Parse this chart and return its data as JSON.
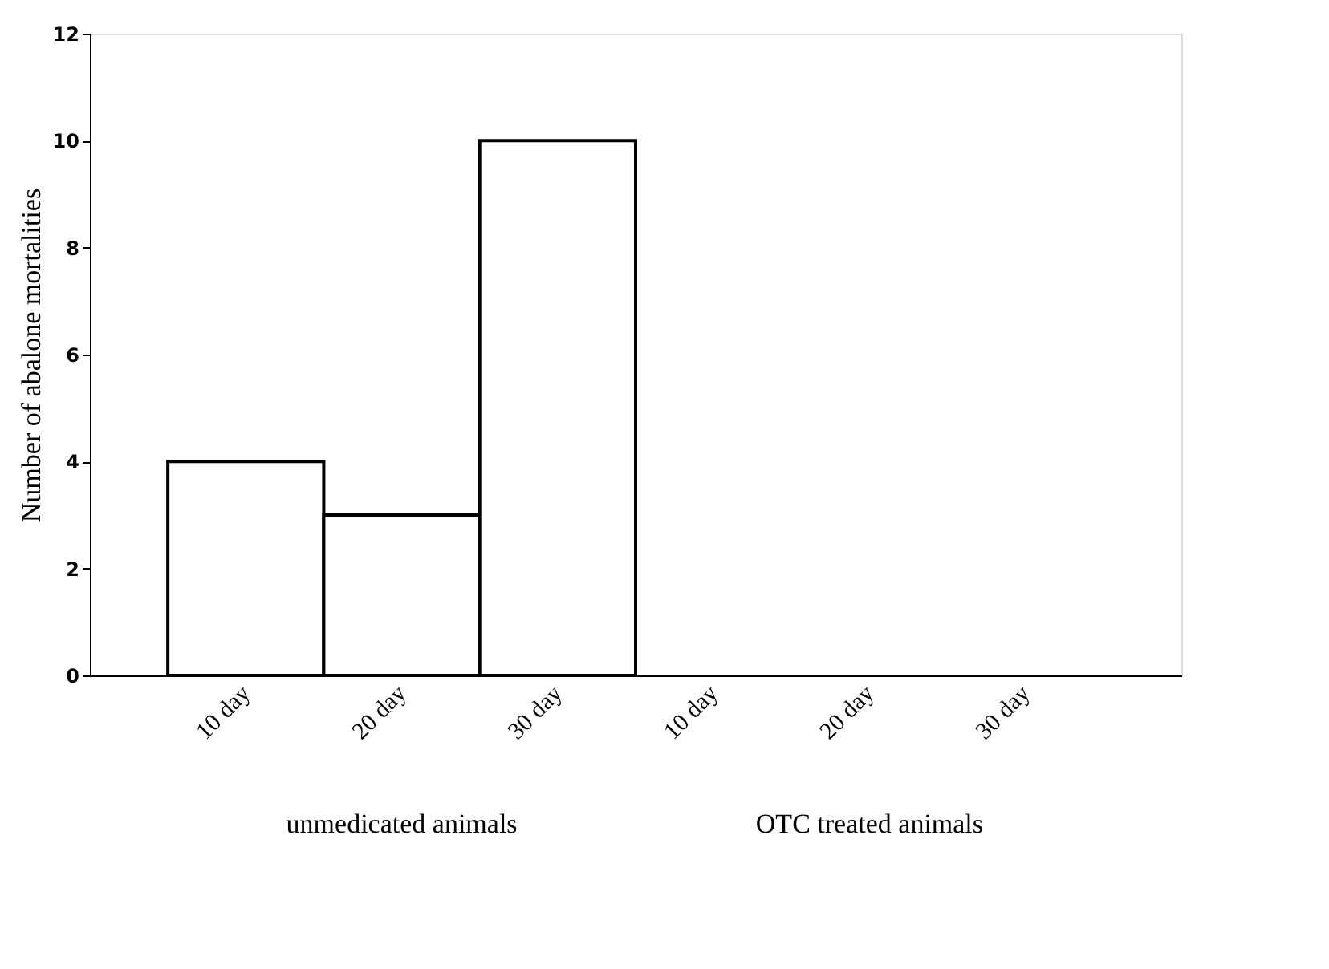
{
  "chart_data": {
    "type": "bar",
    "ylabel": "Number of abalone mortalities",
    "categories": [
      "10 day",
      "20 day",
      "30 day",
      "10 day",
      "20 day",
      "30 day"
    ],
    "values": [
      4,
      3,
      10,
      0,
      0,
      0
    ],
    "color": "#ffffff",
    "ylim": [
      0,
      12
    ],
    "yticks": [
      0,
      2,
      4,
      6,
      8,
      10,
      12
    ],
    "grid": false,
    "annotations": [
      "unmedicated animals",
      "OTC treated animals"
    ]
  }
}
